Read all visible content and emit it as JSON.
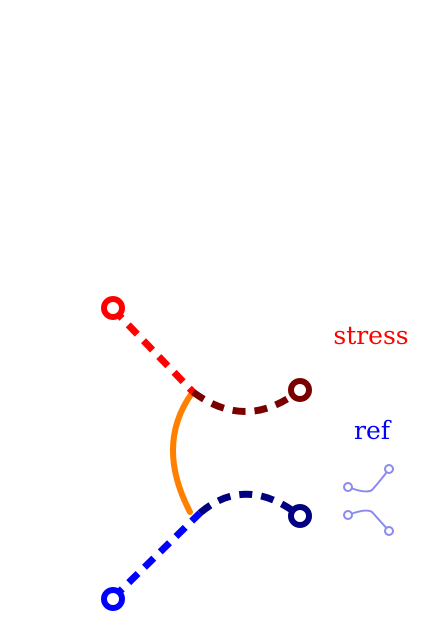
{
  "labels": {
    "stress": "stress",
    "ref": "ref"
  },
  "colors": {
    "red": "#ff0000",
    "dark_red": "#7a0000",
    "orange": "#ff8000",
    "blue": "#0000ff",
    "navy": "#000080",
    "ref_icon": "#8a8af0",
    "background": "#ffffff"
  },
  "icons": {
    "ref": "branch-icon"
  }
}
